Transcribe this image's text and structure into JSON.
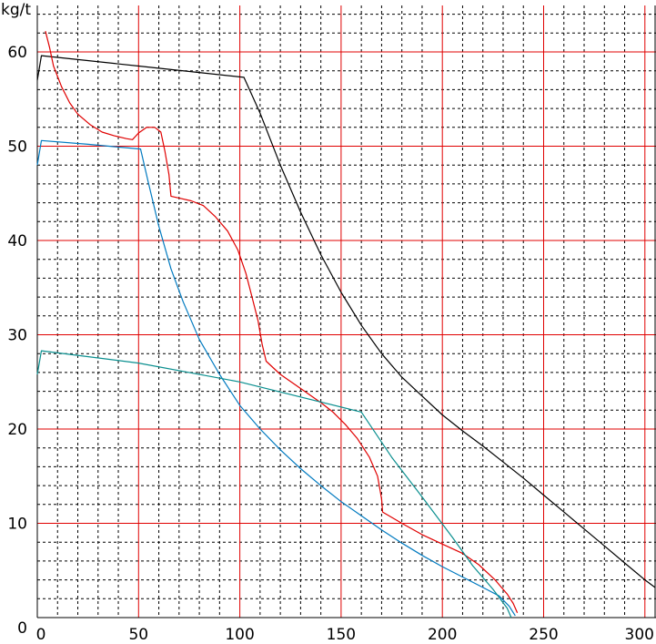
{
  "chart_data": {
    "type": "line",
    "ylabel": "kg/t",
    "xlabel": "",
    "title": "",
    "xlim": [
      0,
      305
    ],
    "ylim": [
      0,
      65
    ],
    "x_ticks": [
      0,
      50,
      100,
      150,
      200,
      250,
      300
    ],
    "y_ticks": [
      0,
      10,
      20,
      30,
      40,
      50,
      60
    ],
    "x_minor_step": 10,
    "y_minor_step": 2,
    "grid": true,
    "colors": {
      "major_grid": "#e00000",
      "minor_grid": "#000000",
      "axis": "#000000",
      "background": "#ffffff"
    },
    "series": [
      {
        "color": "#000000",
        "points": [
          [
            0,
            57.0
          ],
          [
            2,
            59.6
          ],
          [
            50,
            58.5
          ],
          [
            102,
            57.3
          ],
          [
            110,
            53.5
          ],
          [
            120,
            48.0
          ],
          [
            130,
            43.0
          ],
          [
            140,
            38.5
          ],
          [
            150,
            34.5
          ],
          [
            160,
            31.0
          ],
          [
            170,
            28.0
          ],
          [
            180,
            25.5
          ],
          [
            190,
            23.5
          ],
          [
            200,
            21.5
          ],
          [
            210,
            19.8
          ],
          [
            220,
            18.2
          ],
          [
            230,
            16.5
          ],
          [
            240,
            14.8
          ],
          [
            250,
            13.0
          ],
          [
            260,
            11.2
          ],
          [
            270,
            9.4
          ],
          [
            280,
            7.6
          ],
          [
            290,
            5.8
          ],
          [
            300,
            4.0
          ],
          [
            305,
            3.2
          ]
        ]
      },
      {
        "color": "#e00000",
        "points": [
          [
            4,
            62.2
          ],
          [
            6,
            60.5
          ],
          [
            8,
            58.5
          ],
          [
            12,
            56.3
          ],
          [
            16,
            54.6
          ],
          [
            20,
            53.4
          ],
          [
            26,
            52.3
          ],
          [
            32,
            51.5
          ],
          [
            38,
            51.1
          ],
          [
            44,
            50.8
          ],
          [
            47,
            50.7
          ],
          [
            50,
            51.4
          ],
          [
            54,
            52.0
          ],
          [
            58,
            52.0
          ],
          [
            61,
            51.5
          ],
          [
            63,
            49.5
          ],
          [
            65,
            47.0
          ],
          [
            66,
            44.7
          ],
          [
            70,
            44.5
          ],
          [
            76,
            44.2
          ],
          [
            82,
            43.7
          ],
          [
            88,
            42.5
          ],
          [
            94,
            41.0
          ],
          [
            99,
            39.0
          ],
          [
            103,
            36.5
          ],
          [
            106,
            34.0
          ],
          [
            109,
            31.5
          ],
          [
            111,
            29.0
          ],
          [
            113,
            27.2
          ],
          [
            120,
            25.8
          ],
          [
            130,
            24.3
          ],
          [
            140,
            22.8
          ],
          [
            146,
            21.8
          ],
          [
            152,
            20.5
          ],
          [
            158,
            19.0
          ],
          [
            164,
            17.0
          ],
          [
            168,
            15.0
          ],
          [
            170,
            12.6
          ],
          [
            170.5,
            11.2
          ],
          [
            180,
            10.0
          ],
          [
            190,
            8.8
          ],
          [
            200,
            7.8
          ],
          [
            210,
            6.8
          ],
          [
            218,
            5.6
          ],
          [
            226,
            4.0
          ],
          [
            232,
            2.5
          ],
          [
            235,
            1.5
          ],
          [
            237,
            0.5
          ]
        ]
      },
      {
        "color": "#007ac0",
        "points": [
          [
            0,
            48.0
          ],
          [
            2,
            50.6
          ],
          [
            25,
            50.2
          ],
          [
            51,
            49.7
          ],
          [
            55,
            46.0
          ],
          [
            60,
            41.5
          ],
          [
            66,
            37.0
          ],
          [
            72,
            33.5
          ],
          [
            80,
            29.5
          ],
          [
            90,
            25.8
          ],
          [
            100,
            22.5
          ],
          [
            110,
            20.0
          ],
          [
            120,
            17.8
          ],
          [
            130,
            15.8
          ],
          [
            140,
            14.0
          ],
          [
            150,
            12.3
          ],
          [
            160,
            10.8
          ],
          [
            170,
            9.3
          ],
          [
            180,
            7.9
          ],
          [
            190,
            6.6
          ],
          [
            200,
            5.4
          ],
          [
            210,
            4.3
          ],
          [
            220,
            3.2
          ],
          [
            228,
            2.3
          ],
          [
            233,
            1.2
          ],
          [
            236,
            0.2
          ]
        ]
      },
      {
        "color": "#0a8f8f",
        "points": [
          [
            0,
            25.8
          ],
          [
            2,
            28.3
          ],
          [
            50,
            27.0
          ],
          [
            100,
            25.0
          ],
          [
            160,
            21.8
          ],
          [
            175,
            17.0
          ],
          [
            190,
            12.8
          ],
          [
            205,
            8.5
          ],
          [
            215,
            5.5
          ],
          [
            225,
            3.0
          ],
          [
            232,
            1.0
          ],
          [
            234,
            0.0
          ]
        ]
      }
    ]
  }
}
